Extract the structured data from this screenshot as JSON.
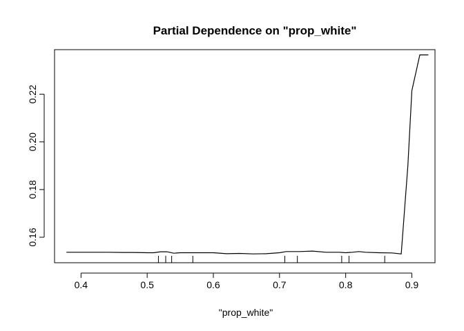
{
  "chart_data": {
    "type": "line",
    "title": "Partial Dependence on \"prop_white\"",
    "xlabel": "\"prop_white\"",
    "ylabel": "",
    "xlim": [
      0.36,
      0.935
    ],
    "ylim": [
      0.1493,
      0.2387
    ],
    "xticks": [
      0.4,
      0.5,
      0.6,
      0.7,
      0.8,
      0.9
    ],
    "xtick_labels": [
      "0.4",
      "0.5",
      "0.6",
      "0.7",
      "0.8",
      "0.9"
    ],
    "yticks": [
      0.16,
      0.18,
      0.2,
      0.22
    ],
    "ytick_labels": [
      "0.16",
      "0.18",
      "0.20",
      "0.22"
    ],
    "grid": false,
    "series": [
      {
        "x": [
          0.378,
          0.41,
          0.44,
          0.465,
          0.48,
          0.5,
          0.51,
          0.52,
          0.53,
          0.54,
          0.55,
          0.57,
          0.6,
          0.62,
          0.64,
          0.66,
          0.68,
          0.7,
          0.71,
          0.73,
          0.75,
          0.77,
          0.79,
          0.8,
          0.81,
          0.82,
          0.83,
          0.85,
          0.87,
          0.884,
          0.894,
          0.9,
          0.912,
          0.925
        ],
        "y": [
          0.1537,
          0.1537,
          0.1537,
          0.1536,
          0.1536,
          0.1535,
          0.1535,
          0.1539,
          0.1539,
          0.1533,
          0.1535,
          0.1535,
          0.1535,
          0.1531,
          0.1532,
          0.153,
          0.1531,
          0.1535,
          0.154,
          0.154,
          0.1542,
          0.1537,
          0.1537,
          0.1535,
          0.1537,
          0.154,
          0.1537,
          0.1535,
          0.1534,
          0.153,
          0.19,
          0.2215,
          0.2365,
          0.2365
        ]
      }
    ],
    "rug": [
      0.517,
      0.528,
      0.537,
      0.569,
      0.708,
      0.727,
      0.794,
      0.805,
      0.859
    ]
  }
}
